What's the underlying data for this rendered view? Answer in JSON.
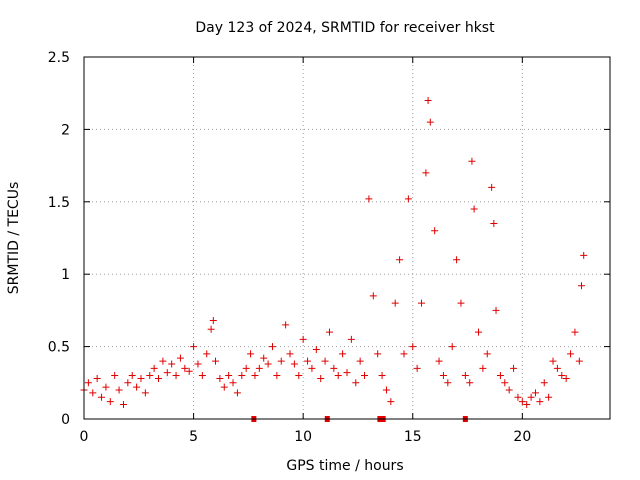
{
  "chart_data": {
    "type": "scatter",
    "title": "Day 123 of 2024, SRMTID for receiver hkst",
    "xlabel": "GPS time / hours",
    "ylabel": "SRMTID / TECUs",
    "xlim": [
      0,
      24
    ],
    "ylim": [
      0,
      2.5
    ],
    "x_ticks": [
      0,
      5,
      10,
      15,
      20
    ],
    "x_tick_labels": [
      "0",
      "5",
      "10",
      "15",
      "20"
    ],
    "y_ticks": [
      0,
      0.5,
      1,
      1.5,
      2,
      2.5
    ],
    "y_tick_labels": [
      "0",
      "0.5",
      "1",
      "1.5",
      "2",
      "2.5"
    ],
    "grid": true,
    "marker": "plus",
    "color": "#e00000",
    "data_gap_markers_x": [
      7.75,
      11.1,
      13.5,
      13.65,
      17.4
    ],
    "series": [
      {
        "name": "SRMTID",
        "x": [
          0.0,
          0.2,
          0.4,
          0.6,
          0.8,
          1.0,
          1.2,
          1.4,
          1.6,
          1.8,
          2.0,
          2.2,
          2.4,
          2.6,
          2.8,
          3.0,
          3.2,
          3.4,
          3.6,
          3.8,
          4.0,
          4.2,
          4.4,
          4.6,
          4.8,
          5.0,
          5.2,
          5.4,
          5.6,
          5.8,
          5.9,
          6.0,
          6.2,
          6.4,
          6.6,
          6.8,
          7.0,
          7.2,
          7.4,
          7.6,
          7.8,
          8.0,
          8.2,
          8.4,
          8.6,
          8.8,
          9.0,
          9.2,
          9.4,
          9.6,
          9.8,
          10.0,
          10.2,
          10.4,
          10.6,
          10.8,
          11.0,
          11.2,
          11.4,
          11.6,
          11.8,
          12.0,
          12.2,
          12.4,
          12.6,
          12.8,
          13.0,
          13.2,
          13.4,
          13.6,
          13.8,
          14.0,
          14.2,
          14.4,
          14.6,
          14.8,
          15.0,
          15.2,
          15.4,
          15.6,
          15.7,
          15.8,
          16.0,
          16.2,
          16.4,
          16.6,
          16.8,
          17.0,
          17.2,
          17.4,
          17.6,
          17.7,
          17.8,
          18.0,
          18.2,
          18.4,
          18.6,
          18.7,
          18.8,
          19.0,
          19.2,
          19.4,
          19.6,
          19.8,
          20.0,
          20.2,
          20.4,
          20.6,
          20.8,
          21.0,
          21.2,
          21.4,
          21.6,
          21.8,
          22.0,
          22.2,
          22.4,
          22.6,
          22.7,
          22.8
        ],
        "y": [
          0.2,
          0.25,
          0.18,
          0.28,
          0.15,
          0.22,
          0.12,
          0.3,
          0.2,
          0.1,
          0.25,
          0.3,
          0.22,
          0.28,
          0.18,
          0.3,
          0.35,
          0.28,
          0.4,
          0.32,
          0.38,
          0.3,
          0.42,
          0.35,
          0.33,
          0.5,
          0.38,
          0.3,
          0.45,
          0.62,
          0.68,
          0.4,
          0.28,
          0.22,
          0.3,
          0.25,
          0.18,
          0.3,
          0.35,
          0.45,
          0.3,
          0.35,
          0.42,
          0.38,
          0.5,
          0.3,
          0.4,
          0.65,
          0.45,
          0.38,
          0.3,
          0.55,
          0.4,
          0.35,
          0.48,
          0.28,
          0.4,
          0.6,
          0.35,
          0.3,
          0.45,
          0.32,
          0.55,
          0.25,
          0.4,
          0.3,
          1.52,
          0.85,
          0.45,
          0.3,
          0.2,
          0.12,
          0.8,
          1.1,
          0.45,
          1.52,
          0.5,
          0.35,
          0.8,
          1.7,
          2.2,
          2.05,
          1.3,
          0.4,
          0.3,
          0.25,
          0.5,
          1.1,
          0.8,
          0.3,
          0.25,
          1.78,
          1.45,
          0.6,
          0.35,
          0.45,
          1.6,
          1.35,
          0.75,
          0.3,
          0.25,
          0.2,
          0.35,
          0.15,
          0.12,
          0.1,
          0.15,
          0.18,
          0.12,
          0.25,
          0.15,
          0.4,
          0.35,
          0.3,
          0.28,
          0.45,
          0.6,
          0.4,
          0.92,
          1.13
        ]
      }
    ]
  }
}
